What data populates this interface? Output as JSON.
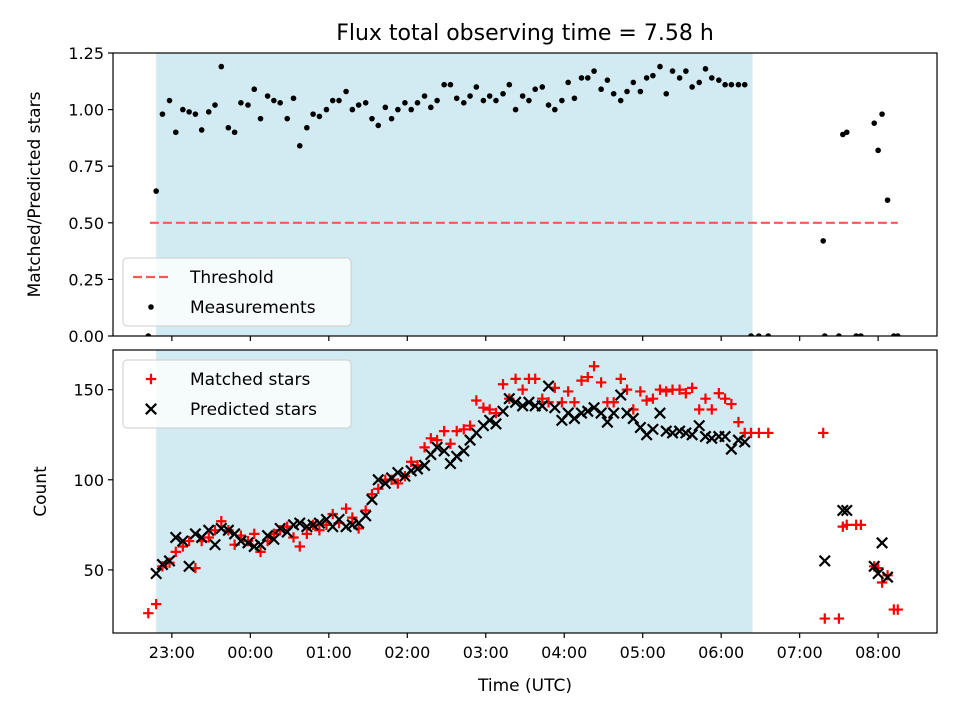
{
  "title": "Flux total observing time = 7.58 h",
  "xlabel": "Time (UTC)",
  "colors": {
    "observing_band": "#add8e6",
    "threshold": "#ff5555",
    "measurements": "#000000",
    "matched": "#ff0000",
    "predicted": "#000000"
  },
  "chart_data": [
    {
      "type": "scatter",
      "panel": "ratio",
      "ylabel": "Matched/Predicted stars",
      "x_unit": "hours since 00:00 UTC",
      "xlim": [
        -1.75,
        8.75
      ],
      "ylim": [
        0.0,
        1.25
      ],
      "yticks": [
        0.0,
        0.25,
        0.5,
        0.75,
        1.0,
        1.25
      ],
      "ytick_labels": [
        "0.00",
        "0.25",
        "0.50",
        "0.75",
        "1.00",
        "1.25"
      ],
      "xticks": [
        -1.0,
        0.0,
        1.0,
        2.0,
        3.0,
        4.0,
        5.0,
        6.0,
        7.0,
        8.0
      ],
      "xtick_labels": [
        "23:00",
        "00:00",
        "01:00",
        "02:00",
        "03:00",
        "04:00",
        "05:00",
        "06:00",
        "07:00",
        "08:00"
      ],
      "shaded_span": [
        -1.2,
        6.4
      ],
      "legend": {
        "placement": "lower-left",
        "entries": [
          "Threshold",
          "Measurements"
        ]
      },
      "threshold": {
        "name": "Threshold",
        "y": 0.5,
        "x_start": -1.28,
        "x_end": 8.25
      },
      "series": [
        {
          "name": "Measurements",
          "marker": "dot",
          "x": [
            -1.3,
            -1.2,
            -1.12,
            -1.03,
            -0.95,
            -0.86,
            -0.78,
            -0.7,
            -0.62,
            -0.53,
            -0.45,
            -0.37,
            -0.28,
            -0.2,
            -0.12,
            -0.03,
            0.05,
            0.13,
            0.22,
            0.3,
            0.38,
            0.47,
            0.55,
            0.63,
            0.72,
            0.8,
            0.88,
            0.97,
            1.05,
            1.13,
            1.22,
            1.3,
            1.38,
            1.47,
            1.55,
            1.63,
            1.72,
            1.8,
            1.88,
            1.97,
            2.05,
            2.13,
            2.22,
            2.3,
            2.38,
            2.47,
            2.55,
            2.63,
            2.72,
            2.8,
            2.88,
            2.97,
            3.05,
            3.13,
            3.22,
            3.3,
            3.38,
            3.47,
            3.55,
            3.63,
            3.72,
            3.8,
            3.88,
            3.97,
            4.05,
            4.13,
            4.22,
            4.3,
            4.38,
            4.47,
            4.55,
            4.63,
            4.72,
            4.8,
            4.88,
            4.97,
            5.05,
            5.13,
            5.22,
            5.3,
            5.38,
            5.47,
            5.55,
            5.63,
            5.72,
            5.8,
            5.88,
            5.97,
            6.05,
            6.13,
            6.22,
            6.3,
            6.38,
            6.48,
            6.6,
            7.3,
            7.32,
            7.5,
            7.55,
            7.6,
            7.72,
            7.78,
            7.95,
            8.0,
            8.05,
            8.12,
            8.2,
            8.25
          ],
          "y": [
            0.0,
            0.64,
            0.98,
            1.04,
            0.9,
            1.0,
            0.99,
            0.98,
            0.91,
            0.99,
            1.02,
            1.19,
            0.92,
            0.9,
            1.03,
            1.02,
            1.09,
            0.96,
            1.06,
            1.04,
            1.03,
            0.96,
            1.05,
            0.84,
            0.92,
            0.98,
            0.97,
            1.0,
            1.04,
            1.04,
            1.08,
            1.0,
            1.02,
            1.03,
            0.96,
            0.93,
            1.01,
            0.96,
            1.0,
            1.03,
            1.0,
            1.03,
            1.06,
            1.01,
            1.04,
            1.11,
            1.11,
            1.05,
            1.03,
            1.06,
            1.1,
            1.04,
            1.06,
            1.04,
            1.07,
            1.11,
            1.0,
            1.06,
            1.04,
            1.09,
            1.1,
            1.02,
            1.0,
            1.04,
            1.12,
            1.05,
            1.14,
            1.14,
            1.17,
            1.09,
            1.13,
            1.07,
            1.04,
            1.08,
            1.12,
            1.08,
            1.14,
            1.15,
            1.19,
            1.07,
            1.17,
            1.14,
            1.17,
            1.1,
            1.12,
            1.18,
            1.14,
            1.13,
            1.11,
            1.11,
            1.11,
            1.11,
            0.0,
            0.0,
            0.0,
            0.42,
            0.0,
            0.0,
            0.89,
            0.9,
            0.0,
            0.0,
            0.94,
            0.82,
            0.98,
            0.6,
            0.0,
            0.0
          ]
        }
      ]
    },
    {
      "type": "scatter",
      "panel": "counts",
      "ylabel": "Count",
      "x_unit": "hours since 00:00 UTC",
      "xlim": [
        -1.75,
        8.75
      ],
      "ylim": [
        15,
        172
      ],
      "yticks": [
        50,
        100,
        150
      ],
      "ytick_labels": [
        "50",
        "100",
        "150"
      ],
      "xticks": [
        -1.0,
        0.0,
        1.0,
        2.0,
        3.0,
        4.0,
        5.0,
        6.0,
        7.0,
        8.0
      ],
      "xtick_labels": [
        "23:00",
        "00:00",
        "01:00",
        "02:00",
        "03:00",
        "04:00",
        "05:00",
        "06:00",
        "07:00",
        "08:00"
      ],
      "shaded_span": [
        -1.2,
        6.4
      ],
      "legend": {
        "placement": "upper-left",
        "entries": [
          "Matched stars",
          "Predicted stars"
        ]
      },
      "series": [
        {
          "name": "Matched stars",
          "marker": "plus",
          "x": [
            -1.3,
            -1.2,
            -1.12,
            -1.03,
            -0.95,
            -0.86,
            -0.78,
            -0.7,
            -0.62,
            -0.53,
            -0.45,
            -0.37,
            -0.28,
            -0.2,
            -0.12,
            -0.03,
            0.05,
            0.13,
            0.22,
            0.3,
            0.38,
            0.47,
            0.55,
            0.63,
            0.72,
            0.8,
            0.88,
            0.97,
            1.05,
            1.13,
            1.22,
            1.3,
            1.38,
            1.47,
            1.55,
            1.63,
            1.72,
            1.8,
            1.88,
            1.97,
            2.05,
            2.13,
            2.22,
            2.3,
            2.38,
            2.47,
            2.55,
            2.63,
            2.72,
            2.8,
            2.88,
            2.97,
            3.05,
            3.13,
            3.22,
            3.3,
            3.38,
            3.47,
            3.55,
            3.63,
            3.72,
            3.8,
            3.88,
            3.97,
            4.05,
            4.13,
            4.22,
            4.3,
            4.38,
            4.47,
            4.55,
            4.63,
            4.72,
            4.8,
            4.88,
            4.97,
            5.05,
            5.13,
            5.22,
            5.3,
            5.38,
            5.47,
            5.55,
            5.63,
            5.72,
            5.8,
            5.88,
            5.97,
            6.05,
            6.13,
            6.22,
            6.3,
            6.38,
            6.48,
            6.6,
            7.3,
            7.32,
            7.5,
            7.55,
            7.6,
            7.72,
            7.78,
            7.95,
            8.0,
            8.05,
            8.12,
            8.2,
            8.25
          ],
          "y": [
            26,
            31,
            52,
            54,
            60,
            63,
            66,
            51,
            66,
            68,
            72,
            77,
            72,
            64,
            69,
            66,
            70,
            60,
            66,
            70,
            72,
            74,
            68,
            63,
            70,
            75,
            72,
            75,
            81,
            76,
            84,
            79,
            73,
            83,
            92,
            95,
            100,
            100,
            98,
            102,
            110,
            108,
            118,
            123,
            122,
            127,
            120,
            127,
            128,
            130,
            144,
            140,
            139,
            137,
            153,
            145,
            156,
            150,
            156,
            156,
            145,
            143,
            151,
            143,
            149,
            143,
            155,
            157,
            163,
            154,
            143,
            143,
            156,
            150,
            139,
            149,
            144,
            145,
            150,
            149,
            150,
            150,
            148,
            151,
            139,
            145,
            139,
            148,
            145,
            142,
            132,
            126,
            126,
            126,
            126,
            126,
            23,
            23,
            74,
            75,
            75,
            75,
            52,
            51,
            43,
            47,
            28,
            28
          ]
        },
        {
          "name": "Predicted stars",
          "marker": "cross",
          "x": [
            -1.2,
            -1.12,
            -1.03,
            -0.95,
            -0.86,
            -0.78,
            -0.7,
            -0.62,
            -0.53,
            -0.45,
            -0.37,
            -0.28,
            -0.2,
            -0.12,
            -0.03,
            0.05,
            0.13,
            0.22,
            0.3,
            0.38,
            0.47,
            0.55,
            0.63,
            0.72,
            0.8,
            0.88,
            0.97,
            1.05,
            1.13,
            1.22,
            1.3,
            1.38,
            1.47,
            1.55,
            1.63,
            1.72,
            1.8,
            1.88,
            1.97,
            2.05,
            2.13,
            2.22,
            2.3,
            2.38,
            2.47,
            2.55,
            2.63,
            2.72,
            2.8,
            2.88,
            2.97,
            3.05,
            3.13,
            3.22,
            3.3,
            3.38,
            3.47,
            3.55,
            3.63,
            3.72,
            3.8,
            3.88,
            3.97,
            4.05,
            4.13,
            4.22,
            4.3,
            4.38,
            4.47,
            4.55,
            4.63,
            4.72,
            4.8,
            4.88,
            4.97,
            5.05,
            5.13,
            5.22,
            5.3,
            5.38,
            5.47,
            5.55,
            5.63,
            5.72,
            5.8,
            5.88,
            5.97,
            6.05,
            6.13,
            6.22,
            6.3,
            7.32,
            7.55,
            7.6,
            7.95,
            8.0,
            8.05,
            8.12
          ],
          "y": [
            48,
            53,
            55,
            68,
            66,
            52,
            70,
            68,
            72,
            64,
            73,
            72,
            70,
            66,
            65,
            63,
            64,
            69,
            67,
            73,
            71,
            75,
            76,
            74,
            75,
            76,
            78,
            74,
            78,
            74,
            75,
            76,
            80,
            89,
            100,
            98,
            101,
            104,
            102,
            105,
            106,
            108,
            114,
            118,
            116,
            109,
            113,
            116,
            122,
            126,
            130,
            133,
            131,
            138,
            145,
            143,
            141,
            143,
            141,
            141,
            152,
            140,
            133,
            137,
            134,
            137,
            138,
            140,
            137,
            132,
            137,
            147,
            137,
            134,
            129,
            125,
            128,
            137,
            127,
            126,
            127,
            126,
            125,
            130,
            124,
            123,
            124,
            124,
            117,
            122,
            121,
            55,
            83,
            83,
            52,
            48,
            65,
            46
          ]
        }
      ]
    }
  ]
}
